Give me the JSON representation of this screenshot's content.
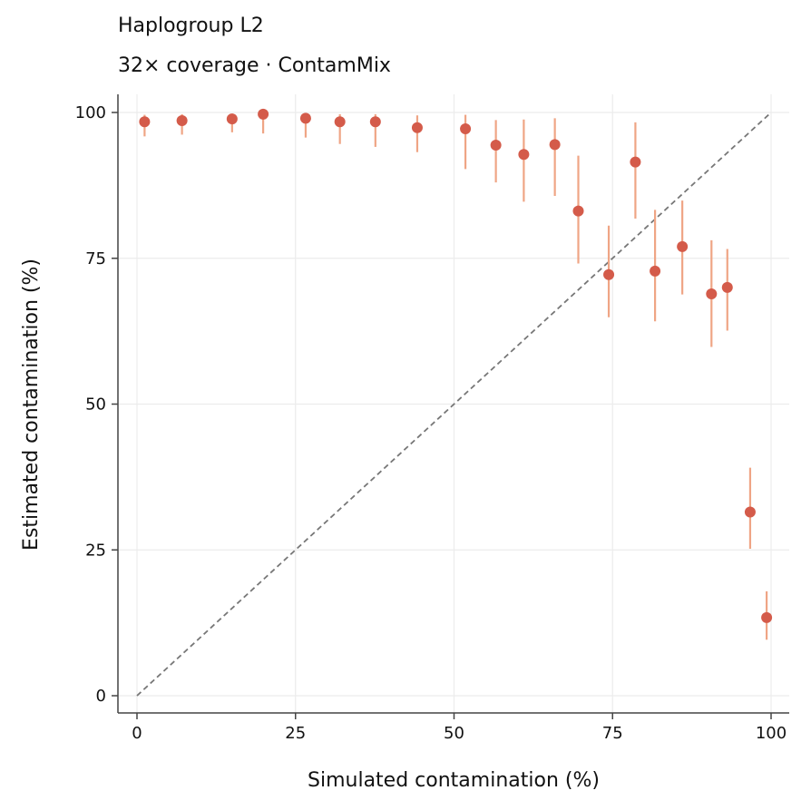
{
  "chart_data": {
    "type": "scatter",
    "title": "Haplogroup L2",
    "subtitle": "32× coverage  ·  ContamMix",
    "xlabel": "Simulated contamination (%)",
    "ylabel": "Estimated contamination (%)",
    "xlim": [
      -3,
      103
    ],
    "ylim": [
      -3,
      103
    ],
    "xticks": [
      0,
      25,
      50,
      75,
      100
    ],
    "yticks": [
      0,
      25,
      50,
      75,
      100
    ],
    "grid": true,
    "reference_line": "y = x",
    "colors": {
      "point": "#d45b4a",
      "errorbar": "#efa585",
      "reference": "#777777",
      "axis": "#444444",
      "grid": "#ececec"
    },
    "points": [
      {
        "x": 1.2,
        "y": 98.4,
        "lo": 95.9,
        "hi": 99.6
      },
      {
        "x": 7.1,
        "y": 98.6,
        "lo": 96.2,
        "hi": 99.7
      },
      {
        "x": 15.0,
        "y": 98.9,
        "lo": 96.6,
        "hi": 99.8
      },
      {
        "x": 19.9,
        "y": 99.7,
        "lo": 96.4,
        "hi": 99.9
      },
      {
        "x": 26.6,
        "y": 99.0,
        "lo": 95.7,
        "hi": 99.8
      },
      {
        "x": 32.0,
        "y": 98.4,
        "lo": 94.6,
        "hi": 99.7
      },
      {
        "x": 37.6,
        "y": 98.4,
        "lo": 94.1,
        "hi": 99.7
      },
      {
        "x": 44.2,
        "y": 97.4,
        "lo": 93.2,
        "hi": 99.5
      },
      {
        "x": 51.8,
        "y": 97.2,
        "lo": 90.3,
        "hi": 99.6
      },
      {
        "x": 56.6,
        "y": 94.4,
        "lo": 88.0,
        "hi": 98.7
      },
      {
        "x": 61.0,
        "y": 92.8,
        "lo": 84.7,
        "hi": 98.8
      },
      {
        "x": 65.9,
        "y": 94.5,
        "lo": 85.7,
        "hi": 99.0
      },
      {
        "x": 69.6,
        "y": 83.1,
        "lo": 74.1,
        "hi": 92.6
      },
      {
        "x": 74.4,
        "y": 72.2,
        "lo": 64.9,
        "hi": 80.6
      },
      {
        "x": 78.6,
        "y": 91.5,
        "lo": 81.8,
        "hi": 98.3
      },
      {
        "x": 81.7,
        "y": 72.8,
        "lo": 64.2,
        "hi": 83.3
      },
      {
        "x": 86.0,
        "y": 77.0,
        "lo": 68.8,
        "hi": 84.9
      },
      {
        "x": 90.6,
        "y": 68.9,
        "lo": 59.8,
        "hi": 78.1
      },
      {
        "x": 93.1,
        "y": 70.0,
        "lo": 62.6,
        "hi": 76.6
      },
      {
        "x": 96.7,
        "y": 31.5,
        "lo": 25.2,
        "hi": 39.1
      },
      {
        "x": 99.3,
        "y": 13.4,
        "lo": 9.6,
        "hi": 17.9
      }
    ]
  }
}
